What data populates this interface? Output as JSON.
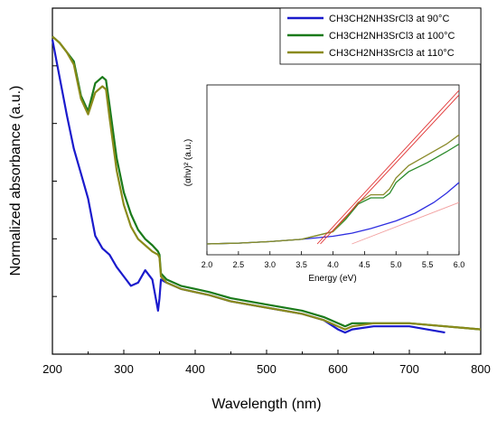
{
  "chart_data": [
    {
      "type": "line",
      "xlabel": "Wavelength (nm)",
      "ylabel": "Normalized absorbance (a.u.)",
      "xlim": [
        200,
        800
      ],
      "ylim": [
        0,
        1
      ],
      "y_ticks_labeled": false,
      "xticks": [
        200,
        300,
        400,
        500,
        600,
        700,
        800
      ],
      "xtick_labels": [
        "200",
        "300",
        "400",
        "500",
        "600",
        "700",
        "800"
      ],
      "legend": {
        "position": "top-right",
        "entries": [
          {
            "label": "CH3CH2NH3SrCl3 at 90°C",
            "color": "#1a1acc"
          },
          {
            "label": "CH3CH2NH3SrCl3 at 100°C",
            "color": "#1a7a1a"
          },
          {
            "label": "CH3CH2NH3SrCl3 at 110°C",
            "color": "#8a8a1a"
          }
        ]
      },
      "series": [
        {
          "color": "#1a1acc",
          "x": [
            200,
            210,
            220,
            230,
            240,
            250,
            260,
            270,
            280,
            290,
            300,
            310,
            320,
            330,
            340,
            348,
            350,
            352,
            360,
            380,
            400,
            420,
            450,
            500,
            550,
            580,
            600,
            610,
            620,
            650,
            700,
            750
          ],
          "y": [
            0.96,
            0.84,
            0.72,
            0.61,
            0.53,
            0.45,
            0.33,
            0.29,
            0.27,
            0.23,
            0.2,
            0.17,
            0.18,
            0.22,
            0.19,
            0.09,
            0.13,
            0.19,
            0.18,
            0.16,
            0.15,
            0.14,
            0.12,
            0.1,
            0.08,
            0.06,
            0.03,
            0.02,
            0.03,
            0.04,
            0.04,
            0.02
          ]
        },
        {
          "color": "#1a7a1a",
          "x": [
            200,
            210,
            220,
            230,
            240,
            250,
            260,
            270,
            275,
            280,
            290,
            300,
            310,
            320,
            330,
            340,
            348,
            350,
            352,
            360,
            380,
            400,
            420,
            450,
            500,
            550,
            580,
            600,
            610,
            620,
            650,
            700,
            750,
            800
          ],
          "y": [
            0.97,
            0.95,
            0.92,
            0.89,
            0.78,
            0.73,
            0.82,
            0.84,
            0.83,
            0.75,
            0.58,
            0.47,
            0.4,
            0.35,
            0.32,
            0.3,
            0.28,
            0.27,
            0.21,
            0.19,
            0.17,
            0.16,
            0.15,
            0.13,
            0.11,
            0.09,
            0.07,
            0.05,
            0.04,
            0.05,
            0.05,
            0.05,
            0.04,
            0.03
          ]
        },
        {
          "color": "#8a8a1a",
          "x": [
            200,
            210,
            220,
            230,
            240,
            250,
            260,
            270,
            275,
            280,
            290,
            300,
            310,
            320,
            330,
            340,
            348,
            350,
            352,
            360,
            380,
            400,
            420,
            450,
            500,
            550,
            580,
            600,
            610,
            620,
            650,
            700,
            750,
            800
          ],
          "y": [
            0.97,
            0.95,
            0.92,
            0.88,
            0.77,
            0.72,
            0.79,
            0.81,
            0.8,
            0.71,
            0.54,
            0.43,
            0.36,
            0.32,
            0.3,
            0.28,
            0.27,
            0.26,
            0.2,
            0.18,
            0.16,
            0.15,
            0.14,
            0.12,
            0.1,
            0.08,
            0.06,
            0.04,
            0.03,
            0.04,
            0.05,
            0.05,
            0.04,
            0.03
          ]
        }
      ]
    },
    {
      "type": "line",
      "xlabel": "Energy (eV)",
      "ylabel": "(αhν)² (a.u.)",
      "xlim": [
        2.0,
        6.0
      ],
      "ylim": [
        0,
        1
      ],
      "y_ticks_labeled": false,
      "xticks": [
        2.0,
        2.5,
        3.0,
        3.5,
        4.0,
        4.5,
        5.0,
        5.5,
        6.0
      ],
      "xtick_labels": [
        "2.0",
        "2.5",
        "3.0",
        "3.5",
        "4.0",
        "4.5",
        "5.0",
        "5.5",
        "6.0"
      ],
      "series": [
        {
          "color": "#2e2ee0",
          "x": [
            2.0,
            2.5,
            3.0,
            3.5,
            4.0,
            4.3,
            4.6,
            5.0,
            5.3,
            5.6,
            5.8,
            6.0
          ],
          "y": [
            0.0,
            0.005,
            0.015,
            0.03,
            0.05,
            0.07,
            0.1,
            0.15,
            0.2,
            0.27,
            0.33,
            0.4
          ]
        },
        {
          "color": "#2a8a2a",
          "x": [
            2.0,
            2.5,
            3.0,
            3.5,
            4.0,
            4.2,
            4.4,
            4.6,
            4.8,
            4.9,
            5.0,
            5.2,
            5.5,
            5.8,
            6.0
          ],
          "y": [
            0.0,
            0.005,
            0.015,
            0.03,
            0.08,
            0.16,
            0.26,
            0.3,
            0.3,
            0.33,
            0.4,
            0.47,
            0.53,
            0.6,
            0.65
          ]
        },
        {
          "color": "#8a8a2a",
          "x": [
            2.0,
            2.5,
            3.0,
            3.5,
            4.0,
            4.2,
            4.4,
            4.6,
            4.8,
            4.9,
            5.0,
            5.2,
            5.5,
            5.8,
            6.0
          ],
          "y": [
            0.0,
            0.005,
            0.015,
            0.03,
            0.08,
            0.17,
            0.27,
            0.32,
            0.32,
            0.36,
            0.43,
            0.51,
            0.58,
            0.65,
            0.71
          ]
        },
        {
          "color": "#e03030",
          "x": [
            3.75,
            6.0
          ],
          "y": [
            0.0,
            1.0
          ]
        },
        {
          "color": "#e03030",
          "x": [
            3.8,
            6.0
          ],
          "y": [
            0.0,
            0.97
          ]
        },
        {
          "color": "#f2a0a0",
          "x": [
            4.3,
            6.0
          ],
          "y": [
            0.0,
            0.27
          ]
        }
      ]
    }
  ]
}
